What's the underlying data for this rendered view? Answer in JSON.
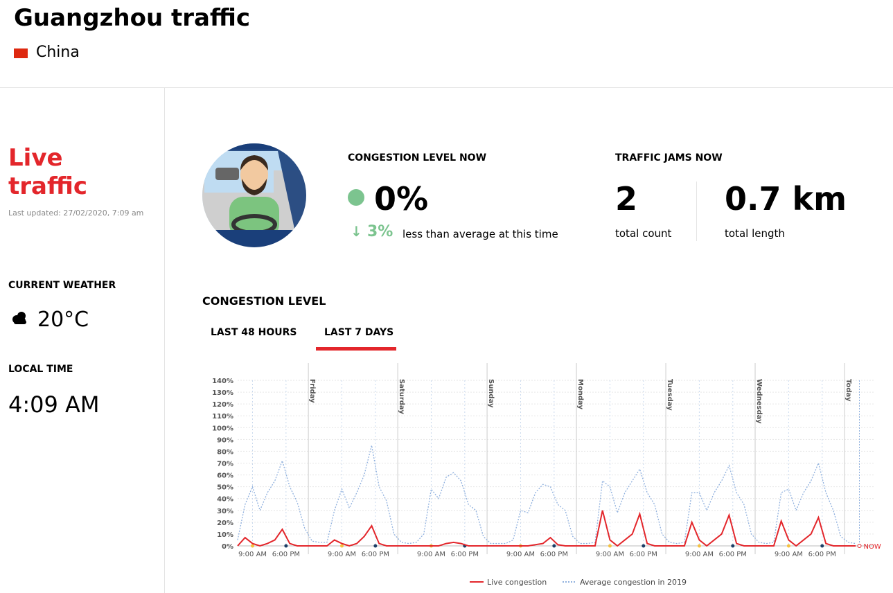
{
  "header": {
    "title": "Guangzhou traffic",
    "country": "China"
  },
  "sidebar": {
    "heading": "Live traffic",
    "updated": "Last updated: 27/02/2020, 7:09 am",
    "weather_label": "CURRENT WEATHER",
    "weather": "20°C",
    "time_label": "LOCAL TIME",
    "time": "4:09 AM"
  },
  "stats": {
    "congestion_label": "CONGESTION LEVEL NOW",
    "congestion": "0%",
    "change": "3%",
    "change_text": "less than average at this time",
    "jams_label": "TRAFFIC JAMS NOW",
    "jams_count": "2",
    "jams_count_text": "total count",
    "jams_length": "0.7 km",
    "jams_length_text": "total length"
  },
  "section": {
    "title": "CONGESTION LEVEL",
    "tabs": [
      "LAST 48 HOURS",
      "LAST 7 DAYS"
    ]
  },
  "chart_data": {
    "type": "line",
    "x": [
      -19,
      -17,
      -15,
      -13,
      -11,
      -9,
      -7,
      -5,
      -3,
      -1,
      1,
      3,
      5,
      7,
      9,
      11,
      13,
      15,
      17,
      19,
      21,
      23,
      25,
      27,
      29,
      31,
      33,
      35,
      37,
      39,
      41,
      43,
      45,
      47,
      49,
      51,
      53,
      55,
      57,
      59,
      61,
      63,
      65,
      67,
      69,
      71,
      73,
      75,
      77,
      79,
      81,
      83,
      85,
      87,
      89,
      91,
      93,
      95,
      97,
      99,
      101,
      103,
      105,
      107,
      109,
      111,
      113,
      115,
      117,
      119,
      121,
      123,
      125,
      127,
      129,
      131,
      133,
      135,
      137,
      139,
      141,
      143,
      145,
      147
    ],
    "series": [
      {
        "name": "Live congestion",
        "color": "#e3262b",
        "style": "solid",
        "values": [
          0,
          7,
          2,
          0,
          2,
          5,
          14,
          2,
          0,
          0,
          0,
          0,
          0,
          5,
          2,
          0,
          2,
          8,
          17,
          2,
          0,
          0,
          0,
          0,
          0,
          0,
          0,
          0,
          2,
          3,
          2,
          0,
          0,
          0,
          0,
          0,
          0,
          0,
          0,
          0,
          1,
          2,
          7,
          1,
          0,
          0,
          0,
          0,
          0,
          30,
          5,
          0,
          5,
          10,
          27,
          2,
          0,
          0,
          0,
          0,
          0,
          20,
          5,
          0,
          5,
          10,
          26,
          2,
          0,
          0,
          0,
          0,
          0,
          21,
          5,
          0,
          5,
          10,
          24,
          2,
          0,
          0,
          0,
          0
        ]
      },
      {
        "name": "Average congestion in 2019",
        "color": "#8fb0de",
        "style": "dotted",
        "values": [
          5,
          35,
          50,
          30,
          45,
          55,
          72,
          50,
          37,
          15,
          4,
          3,
          3,
          30,
          48,
          32,
          45,
          60,
          85,
          50,
          38,
          10,
          3,
          2,
          3,
          10,
          48,
          40,
          58,
          62,
          55,
          35,
          30,
          8,
          2,
          2,
          2,
          5,
          30,
          28,
          45,
          52,
          50,
          35,
          30,
          8,
          2,
          2,
          3,
          55,
          50,
          28,
          45,
          55,
          65,
          45,
          35,
          10,
          3,
          2,
          3,
          45,
          45,
          30,
          45,
          55,
          68,
          45,
          35,
          10,
          3,
          2,
          3,
          45,
          48,
          30,
          45,
          55,
          70,
          45,
          30,
          8,
          3,
          2
        ]
      }
    ],
    "xlim": [
      -19,
      152
    ],
    "xticks": [
      {
        "value": -15,
        "label": "9:00 AM"
      },
      {
        "value": -6,
        "label": "6:00 PM"
      },
      {
        "value": 9,
        "label": "9:00 AM"
      },
      {
        "value": 18,
        "label": "6:00 PM"
      },
      {
        "value": 33,
        "label": "9:00 AM"
      },
      {
        "value": 42,
        "label": "6:00 PM"
      },
      {
        "value": 57,
        "label": "9:00 AM"
      },
      {
        "value": 66,
        "label": "6:00 PM"
      },
      {
        "value": 81,
        "label": "9:00 AM"
      },
      {
        "value": 90,
        "label": "6:00 PM"
      },
      {
        "value": 105,
        "label": "9:00 AM"
      },
      {
        "value": 114,
        "label": "6:00 PM"
      },
      {
        "value": 129,
        "label": "9:00 AM"
      },
      {
        "value": 138,
        "label": "6:00 PM"
      }
    ],
    "ylim": [
      0,
      140
    ],
    "yticks": [
      {
        "value": 0,
        "label": "0%"
      },
      {
        "value": 10,
        "label": "10%"
      },
      {
        "value": 20,
        "label": "20%"
      },
      {
        "value": 30,
        "label": "30%"
      },
      {
        "value": 40,
        "label": "40%"
      },
      {
        "value": 50,
        "label": "50%"
      },
      {
        "value": 60,
        "label": "60%"
      },
      {
        "value": 70,
        "label": "70%"
      },
      {
        "value": 80,
        "label": "80%"
      },
      {
        "value": 90,
        "label": "90%"
      },
      {
        "value": 100,
        "label": "100%"
      },
      {
        "value": 110,
        "label": "110%"
      },
      {
        "value": 120,
        "label": "120%"
      },
      {
        "value": 130,
        "label": "130%"
      },
      {
        "value": 140,
        "label": "140%"
      }
    ],
    "day_markers": [
      {
        "value": 0,
        "label": "Friday"
      },
      {
        "value": 24,
        "label": "Saturday"
      },
      {
        "value": 48,
        "label": "Sunday"
      },
      {
        "value": 72,
        "label": "Monday"
      },
      {
        "value": 96,
        "label": "Tuesday"
      },
      {
        "value": 120,
        "label": "Wednesday"
      },
      {
        "value": 144,
        "label": "Today"
      }
    ],
    "now_marker": {
      "value": 148,
      "label": "NOW"
    },
    "grid": true
  }
}
